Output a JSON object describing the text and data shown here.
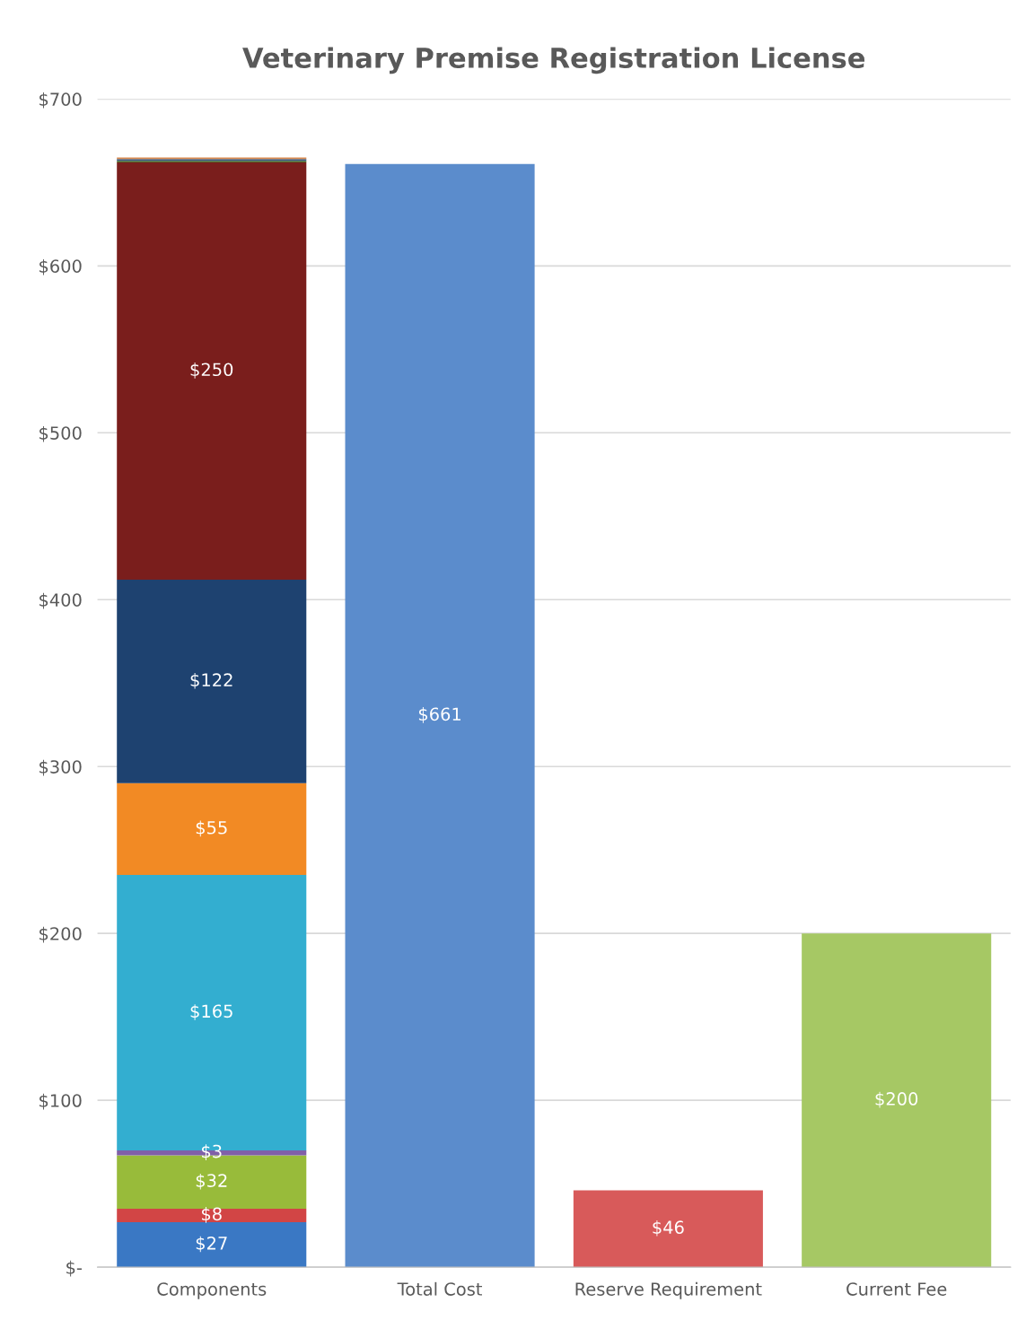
{
  "chart_data": {
    "type": "bar",
    "title": "Veterinary Premise Registration License",
    "categories": [
      "Components",
      "Total Cost",
      "Reserve Requirement",
      "Current Fee"
    ],
    "stacked": true,
    "grid": "y",
    "legend": false,
    "ylim": [
      0,
      700
    ],
    "yticks": [
      {
        "value": 0,
        "label": "$-"
      },
      {
        "value": 100,
        "label": "$100"
      },
      {
        "value": 200,
        "label": "$200"
      },
      {
        "value": 300,
        "label": "$300"
      },
      {
        "value": 400,
        "label": "$400"
      },
      {
        "value": 500,
        "label": "$500"
      },
      {
        "value": 600,
        "label": "$600"
      },
      {
        "value": 700,
        "label": "$700"
      }
    ],
    "series": [
      {
        "color": "#3a78c4",
        "values": [
          27,
          null,
          null,
          null
        ],
        "value_labels": [
          "$27",
          null,
          null,
          null
        ]
      },
      {
        "color": "#d24545",
        "values": [
          8,
          null,
          null,
          null
        ],
        "value_labels": [
          "$8",
          null,
          null,
          null
        ]
      },
      {
        "color": "#98bb3a",
        "values": [
          32,
          null,
          null,
          null
        ],
        "value_labels": [
          "$32",
          null,
          null,
          null
        ]
      },
      {
        "color": "#8060a8",
        "values": [
          3,
          null,
          null,
          null
        ],
        "value_labels": [
          "$3",
          null,
          null,
          null
        ]
      },
      {
        "color": "#33aed0",
        "values": [
          165,
          null,
          null,
          null
        ],
        "value_labels": [
          "$165",
          null,
          null,
          null
        ]
      },
      {
        "color": "#f28a24",
        "values": [
          55,
          null,
          null,
          null
        ],
        "value_labels": [
          "$55",
          null,
          null,
          null
        ]
      },
      {
        "color": "#1e4270",
        "values": [
          122,
          null,
          null,
          null
        ],
        "value_labels": [
          "$122",
          null,
          null,
          null
        ]
      },
      {
        "color": "#7a1e1c",
        "values": [
          250,
          null,
          null,
          null
        ],
        "value_labels": [
          "$250",
          null,
          null,
          null
        ]
      },
      {
        "color": "#4f6b2a",
        "values": [
          1,
          null,
          null,
          null
        ],
        "value_labels": [
          null,
          null,
          null,
          null
        ]
      },
      {
        "color": "#3a5a80",
        "values": [
          1,
          null,
          null,
          null
        ],
        "value_labels": [
          null,
          null,
          null,
          null
        ]
      },
      {
        "color": "#d88a50",
        "values": [
          1,
          null,
          null,
          null
        ],
        "value_labels": [
          null,
          null,
          null,
          null
        ]
      },
      {
        "color": "#5b8ccc",
        "values": [
          null,
          661,
          null,
          null
        ],
        "value_labels": [
          null,
          "$661",
          null,
          null
        ]
      },
      {
        "color": "#d85a5a",
        "values": [
          null,
          null,
          46,
          null
        ],
        "value_labels": [
          null,
          null,
          "$46",
          null
        ]
      },
      {
        "color": "#a6c864",
        "values": [
          null,
          null,
          null,
          200
        ],
        "value_labels": [
          null,
          null,
          null,
          "$200"
        ]
      }
    ]
  }
}
